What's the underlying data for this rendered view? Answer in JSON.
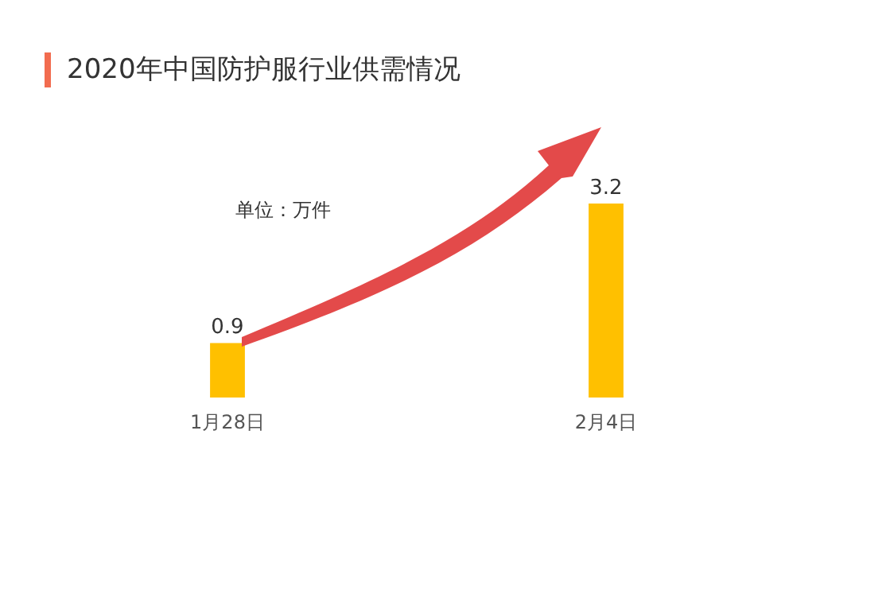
{
  "chart_data": {
    "type": "bar",
    "title": "2020年中国防护服行业供需情况",
    "categories": [
      "1月28日",
      "2月4日"
    ],
    "values": [
      0.9,
      3.2
    ],
    "color": "#ffc000",
    "data_labels": true,
    "annotations": [
      "单位：万件"
    ]
  }
}
